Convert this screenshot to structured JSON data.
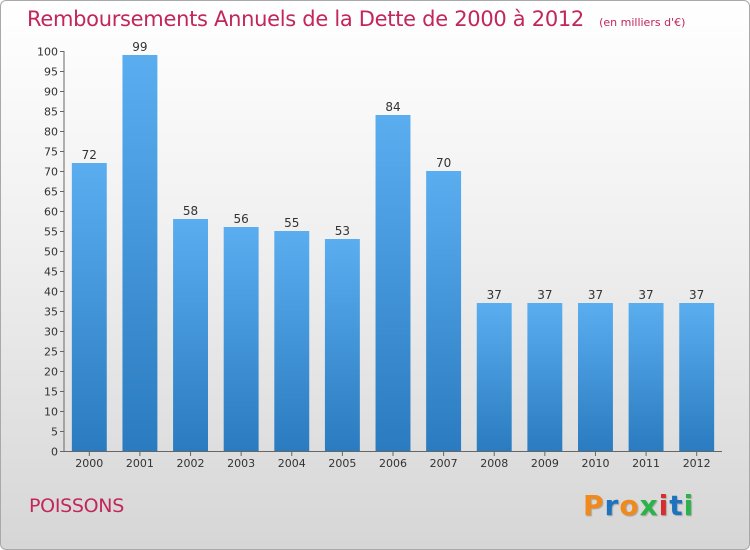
{
  "chart_data": {
    "type": "bar",
    "title": "Remboursements Annuels de la Dette de 2000 à 2012",
    "subtitle": "(en milliers d'€)",
    "categories": [
      "2000",
      "2001",
      "2002",
      "2003",
      "2004",
      "2005",
      "2006",
      "2007",
      "2008",
      "2009",
      "2010",
      "2011",
      "2012"
    ],
    "values": [
      72,
      99,
      58,
      56,
      55,
      53,
      84,
      70,
      37,
      37,
      37,
      37,
      37
    ],
    "ylim": [
      0,
      100
    ],
    "yticks": [
      0,
      5,
      10,
      15,
      20,
      25,
      30,
      35,
      40,
      45,
      50,
      55,
      60,
      65,
      70,
      75,
      80,
      85,
      90,
      95,
      100
    ],
    "grid": false,
    "legend": "none",
    "bar_color_top": "#5aaef0",
    "bar_color_bottom": "#2a7bbf"
  },
  "footer": {
    "commune": "POISSONS",
    "logo": "Proxiti"
  },
  "colors": {
    "accent": "#c2265a",
    "logo_letters": [
      "#f08a1c",
      "#1e73be",
      "#f08a1c",
      "#2bb34a",
      "#d62e2e",
      "#1e73be",
      "#2bb34a"
    ]
  }
}
